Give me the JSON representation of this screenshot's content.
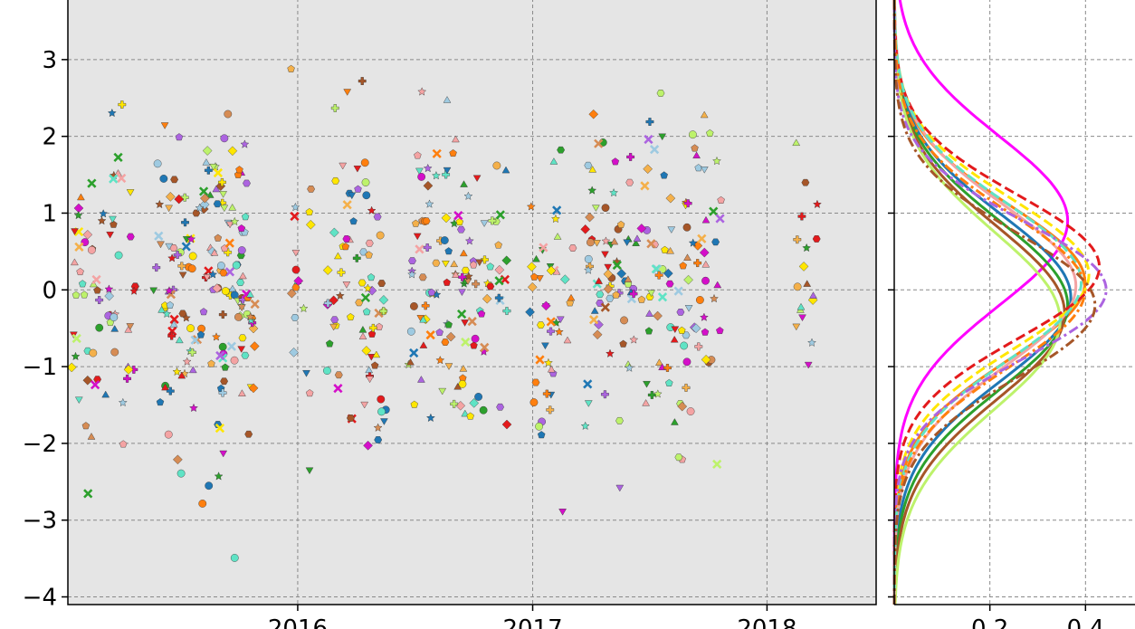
{
  "chart_data": [
    {
      "type": "scatter",
      "title": "",
      "xlabel": "",
      "ylabel": "",
      "xlim": [
        "2015-01-08",
        "2018-06-20"
      ],
      "ylim": [
        -4.1,
        3.8
      ],
      "grid": true,
      "background": "#e5e5e5",
      "x_ticks": [
        "2016-01-01",
        "2017-01-01",
        "2018-01-01"
      ],
      "x_tick_labels": [
        "2016",
        "2017",
        "2018"
      ],
      "y_ticks": [
        -4,
        -3,
        -2,
        -1,
        0,
        1,
        2,
        3
      ],
      "y_tick_labels": [
        "−4",
        "−3",
        "−2",
        "−1",
        "0",
        "1",
        "2",
        "3"
      ],
      "marker_colors": [
        "#ff7f0e",
        "#ffe600",
        "#9ecae1",
        "#e31a1c",
        "#a65628",
        "#d68c54",
        "#f4a3a3",
        "#2ca02c",
        "#1f77b4",
        "#d40fc9",
        "#ac64e0",
        "#bdf26b",
        "#5fe3c5",
        "#f4b04a"
      ],
      "date_clusters": [
        "2015-02-01",
        "2015-03-05",
        "2015-04-05",
        "2015-06-05",
        "2015-07-01",
        "2015-08-05",
        "2015-09-01",
        "2015-09-20",
        "2015-10-15",
        "2016-01-05",
        "2016-03-05",
        "2016-04-10",
        "2016-05-01",
        "2016-07-10",
        "2016-08-10",
        "2016-09-01",
        "2016-10-01",
        "2016-11-05",
        "2017-01-15",
        "2017-02-15",
        "2017-04-10",
        "2017-05-10",
        "2017-06-15",
        "2017-07-15",
        "2017-08-15",
        "2017-09-10",
        "2017-10-05",
        "2018-03-05"
      ]
    },
    {
      "type": "line",
      "title": "",
      "xlabel": "",
      "ylabel": "",
      "xlim": [
        0,
        0.53
      ],
      "ylim": [
        -4.1,
        3.8
      ],
      "grid": true,
      "x_ticks": [
        0.2,
        0.4
      ],
      "x_tick_labels": [
        "0.2",
        "0.4"
      ],
      "series": [
        {
          "color": "#ff00ff",
          "style": "solid",
          "mean": 0.9,
          "sd": 1.1
        },
        {
          "color": "#ff7f0e",
          "style": "solid",
          "mean": 0.1,
          "sd": 1.0
        },
        {
          "color": "#1f77b4",
          "style": "solid",
          "mean": -0.1,
          "sd": 1.08
        },
        {
          "color": "#2ca02c",
          "style": "solid",
          "mean": -0.2,
          "sd": 1.1
        },
        {
          "color": "#a65628",
          "style": "solid",
          "mean": -0.3,
          "sd": 1.12
        },
        {
          "color": "#bdf26b",
          "style": "solid",
          "mean": -0.4,
          "sd": 1.15
        },
        {
          "color": "#f4a3a3",
          "style": "solid",
          "mean": 0.05,
          "sd": 1.05
        },
        {
          "color": "#ffe600",
          "style": "dashed",
          "mean": 0.2,
          "sd": 0.98
        },
        {
          "color": "#e31a1c",
          "style": "dashed",
          "mean": 0.3,
          "sd": 0.93
        },
        {
          "color": "#5fe3c5",
          "style": "dashed",
          "mean": 0.1,
          "sd": 1.02
        },
        {
          "color": "#ff7f0e",
          "style": "dashdot",
          "mean": 0.0,
          "sd": 1.0
        },
        {
          "color": "#ac64e0",
          "style": "dashdot",
          "mean": 0.0,
          "sd": 0.9
        },
        {
          "color": "#a65628",
          "style": "dashdot",
          "mean": -0.2,
          "sd": 0.95
        }
      ]
    }
  ]
}
